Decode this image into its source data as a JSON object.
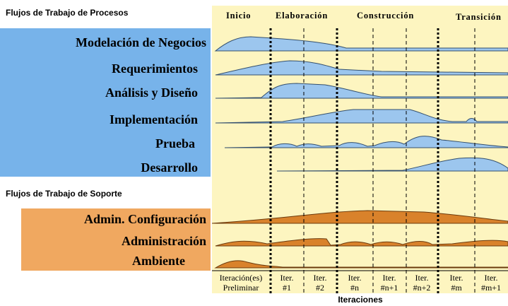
{
  "process_title": "Flujos de Trabajo de Procesos",
  "phases": [
    "Inicio",
    "Elaboración",
    "Construcción",
    "Transición"
  ],
  "process_workflows": [
    "Modelación de Negocios",
    "Requerimientos",
    "Análisis y Diseño",
    "Implementación",
    "Prueba",
    "Desarrollo"
  ],
  "support_title": "Flujos de Trabajo de Soporte",
  "support_workflows": [
    "Admin. Configuración",
    "Administración",
    "Ambiente"
  ],
  "iterations": [
    [
      "Iteración(es)",
      "Preliminar"
    ],
    [
      "Iter.",
      "#1"
    ],
    [
      "Iter.",
      "#2"
    ],
    [
      "Iter.",
      "#n"
    ],
    [
      "Iter.",
      "#n+1"
    ],
    [
      "Iter.",
      "#n+2"
    ],
    [
      "Iter.",
      "#m"
    ],
    [
      "Iter.",
      "#m+1"
    ]
  ],
  "x_label": "Iteraciones"
}
